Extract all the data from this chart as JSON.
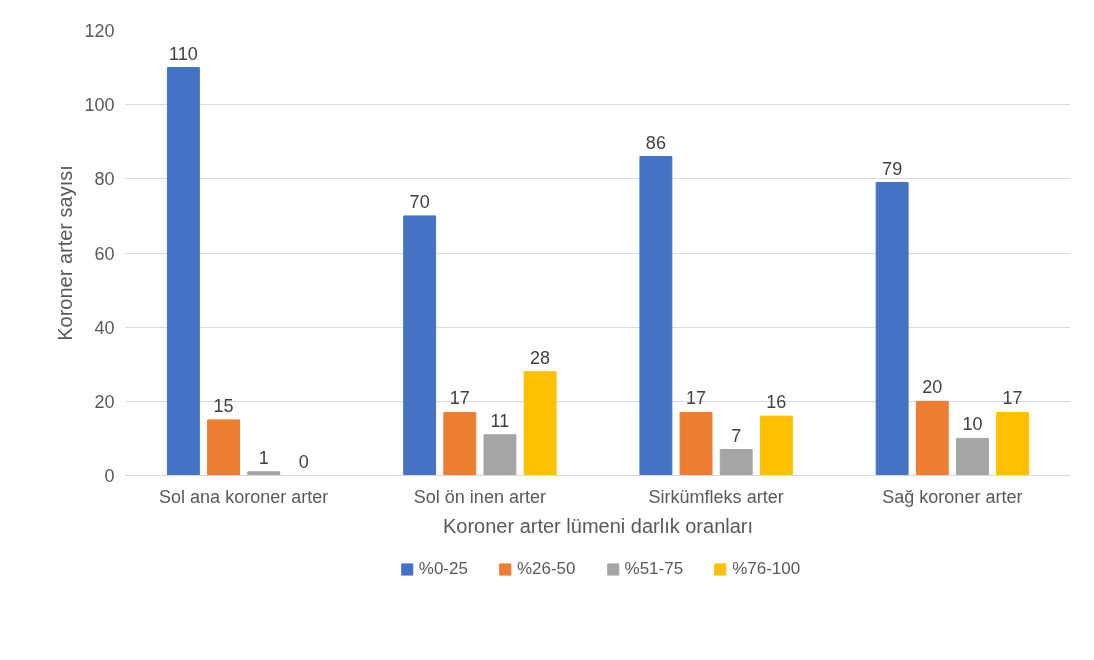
{
  "chart_data": {
    "type": "bar",
    "xlabel": "Koroner arter lümeni darlık oranları",
    "ylabel": "Koroner arter sayısı",
    "categories": [
      "Sol ana koroner arter",
      "Sol ön inen arter",
      "Sirkümfleks arter",
      "Sağ koroner arter"
    ],
    "series": [
      {
        "name": "%0-25",
        "color": "#4472c4",
        "values": [
          110,
          70,
          86,
          79
        ]
      },
      {
        "name": "%26-50",
        "color": "#ed7d31",
        "values": [
          15,
          17,
          17,
          20
        ]
      },
      {
        "name": "%51-75",
        "color": "#a5a5a5",
        "values": [
          1,
          11,
          7,
          10
        ]
      },
      {
        "name": "%76-100",
        "color": "#ffc000",
        "values": [
          0,
          28,
          16,
          17
        ]
      }
    ],
    "ylim": [
      0,
      120
    ],
    "yticks": [
      0,
      20,
      40,
      60,
      80,
      100,
      120
    ],
    "grid": "y",
    "legend": "bottom",
    "data_labels": true
  }
}
